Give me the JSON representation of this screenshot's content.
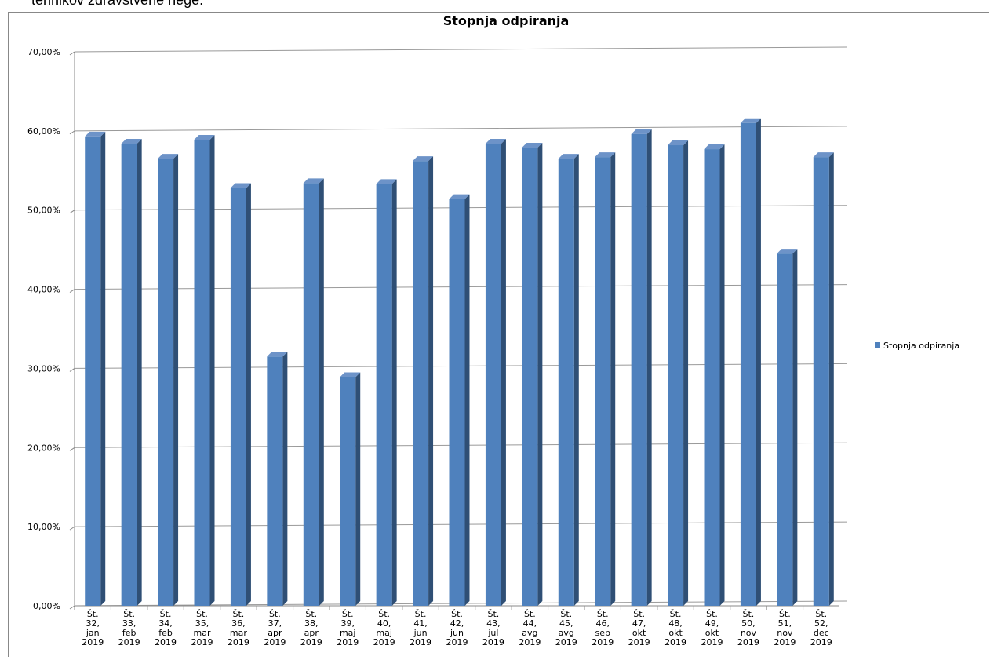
{
  "caption": "tehnikov zdravstvene nege.",
  "chart_data": {
    "type": "bar",
    "title": "Stopnja odpiranja",
    "categories": [
      "Št. 32, jan 2019",
      "Št. 33, feb 2019",
      "Št. 34, feb 2019",
      "Št. 35, mar 2019",
      "Št. 36, mar 2019",
      "Št. 37, apr 2019",
      "Št. 38, apr 2019",
      "Št. 39, maj 2019",
      "Št. 40, maj 2019",
      "Št. 41, jun 2019",
      "Št. 42, jun 2019",
      "Št. 43, jul 2019",
      "Št. 44, avg 2019",
      "Št. 45, avg 2019",
      "Št. 46, sep 2019",
      "Št. 47, okt 2019",
      "Št. 48, okt 2019",
      "Št. 49, okt 2019",
      "Št. 50, nov 2019",
      "Št. 51, nov 2019",
      "Št. 52, dec 2019"
    ],
    "series": [
      {
        "name": "Stopnja odpiranja",
        "color": "#4f81bd",
        "values": [
          59.3,
          58.4,
          56.5,
          58.9,
          52.8,
          31.5,
          53.4,
          28.9,
          53.3,
          56.2,
          51.4,
          58.4,
          57.9,
          56.5,
          56.7,
          59.6,
          58.2,
          57.7,
          61.0,
          44.5,
          56.7
        ]
      }
    ],
    "ylim": [
      0,
      70
    ],
    "yticks": [
      {
        "value": 0,
        "label": "0,00%"
      },
      {
        "value": 10,
        "label": "10,00%"
      },
      {
        "value": 20,
        "label": "20,00%"
      },
      {
        "value": 30,
        "label": "30,00%"
      },
      {
        "value": 40,
        "label": "40,00%"
      },
      {
        "value": 50,
        "label": "50,00%"
      },
      {
        "value": 60,
        "label": "60,00%"
      },
      {
        "value": 70,
        "label": "70,00%"
      }
    ],
    "grid": true,
    "legend": "right"
  }
}
